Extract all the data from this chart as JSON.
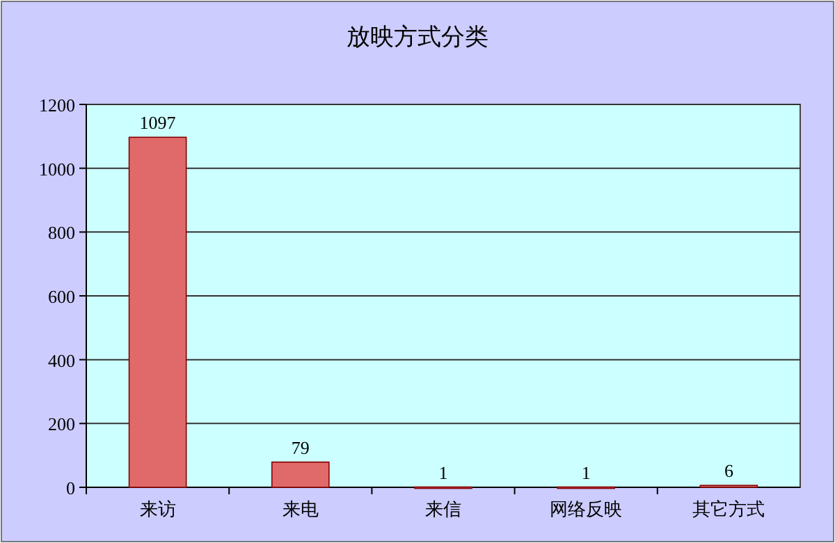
{
  "chart_data": {
    "type": "bar",
    "title": "放映方式分类",
    "categories": [
      "来访",
      "来电",
      "来信",
      "网络反映",
      "其它方式"
    ],
    "values": [
      1097,
      79,
      1,
      1,
      6
    ],
    "color": "#e06a6a",
    "ylim": [
      0,
      1200
    ],
    "yticks": [
      0,
      200,
      400,
      600,
      800,
      1000,
      1200
    ],
    "grid": "y",
    "data_labels": true
  }
}
